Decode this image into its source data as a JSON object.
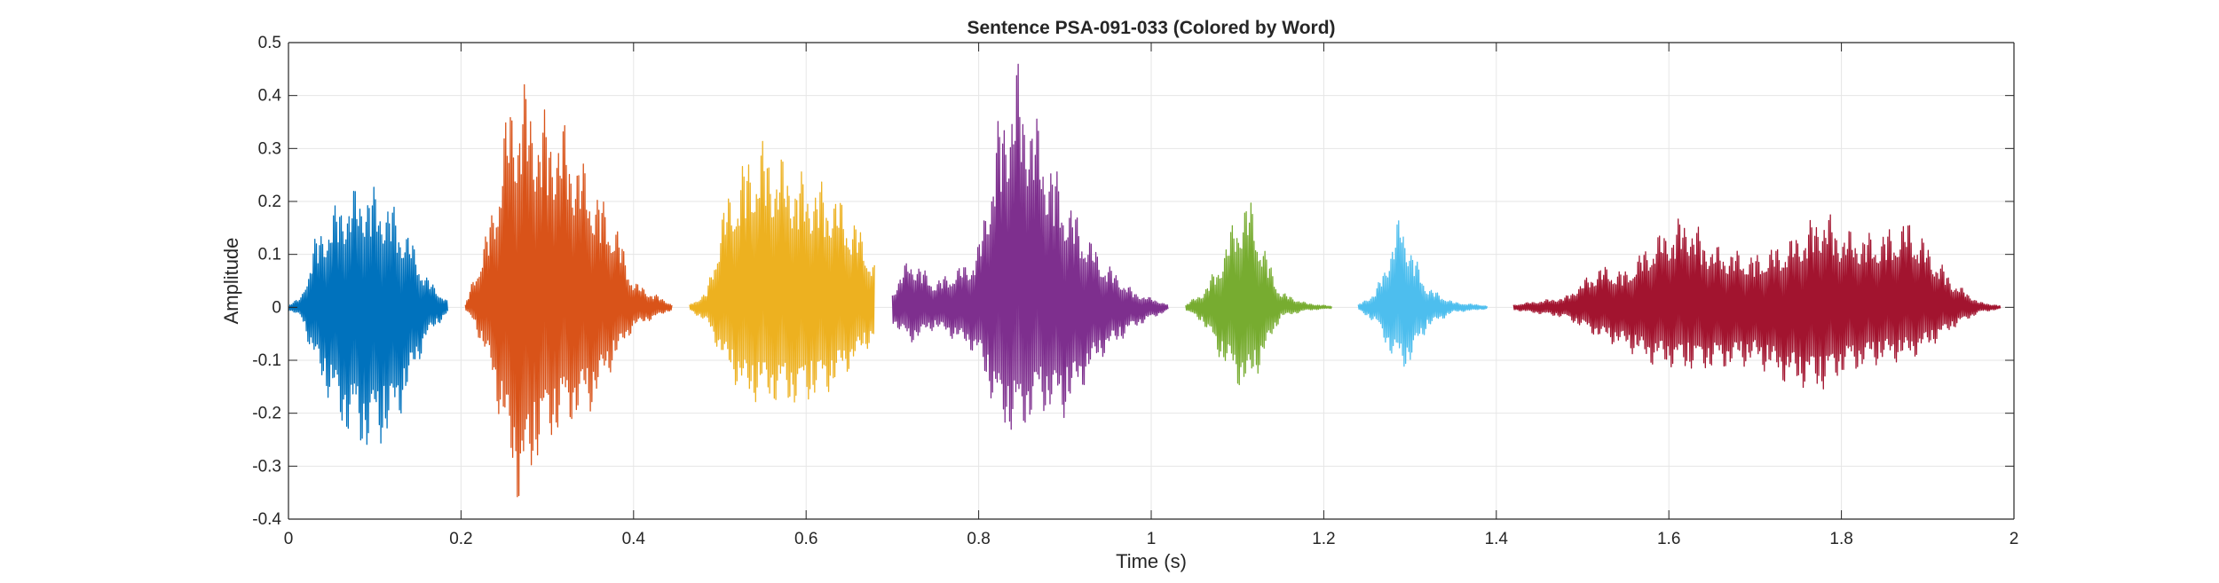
{
  "chart_data": {
    "type": "line",
    "title": "Sentence PSA-091-033 (Colored by Word)",
    "xlabel": "Time (s)",
    "ylabel": "Amplitude",
    "xlim": [
      0,
      2
    ],
    "ylim": [
      -0.4,
      0.5
    ],
    "x_ticks": [
      0,
      0.2,
      0.4,
      0.6,
      0.8,
      1,
      1.2,
      1.4,
      1.6,
      1.8,
      2
    ],
    "x_tick_labels": [
      "0",
      "0.2",
      "0.4",
      "0.6",
      "0.8",
      "1",
      "1.2",
      "1.4",
      "1.6",
      "1.8",
      "2"
    ],
    "y_ticks": [
      -0.4,
      -0.3,
      -0.2,
      -0.1,
      0,
      0.1,
      0.2,
      0.3,
      0.4,
      0.5
    ],
    "y_tick_labels": [
      "-0.4",
      "-0.3",
      "-0.2",
      "-0.1",
      "0",
      "0.1",
      "0.2",
      "0.3",
      "0.4",
      "0.5"
    ],
    "grid": true,
    "legend": "none",
    "series": [
      {
        "color": "#0072BD",
        "envelope": {
          "t": [
            0.0,
            0.015,
            0.03,
            0.06,
            0.09,
            0.12,
            0.14,
            0.16,
            0.185
          ],
          "max": [
            0.005,
            0.02,
            0.13,
            0.21,
            0.24,
            0.2,
            0.14,
            0.06,
            0.01
          ],
          "min": [
            -0.005,
            -0.02,
            -0.11,
            -0.23,
            -0.28,
            -0.25,
            -0.16,
            -0.06,
            -0.01
          ]
        }
      },
      {
        "color": "#D95319",
        "envelope": {
          "t": [
            0.205,
            0.215,
            0.235,
            0.255,
            0.27,
            0.29,
            0.32,
            0.35,
            0.38,
            0.4,
            0.44,
            0.445
          ],
          "max": [
            0.005,
            0.06,
            0.18,
            0.4,
            0.44,
            0.38,
            0.35,
            0.25,
            0.16,
            0.05,
            0.01,
            0.005
          ],
          "min": [
            -0.005,
            -0.03,
            -0.13,
            -0.3,
            -0.4,
            -0.28,
            -0.23,
            -0.2,
            -0.1,
            -0.04,
            -0.008,
            -0.005
          ]
        }
      },
      {
        "color": "#EDB120",
        "envelope": {
          "t": [
            0.465,
            0.485,
            0.505,
            0.53,
            0.55,
            0.59,
            0.63,
            0.66,
            0.68
          ],
          "max": [
            0.005,
            0.03,
            0.2,
            0.29,
            0.32,
            0.26,
            0.23,
            0.16,
            0.08
          ],
          "min": [
            -0.005,
            -0.03,
            -0.11,
            -0.18,
            -0.18,
            -0.19,
            -0.16,
            -0.1,
            -0.06
          ]
        }
      },
      {
        "color": "#7E2F8E",
        "envelope": {
          "t": [
            0.7,
            0.72,
            0.75,
            0.79,
            0.8,
            0.825,
            0.845,
            0.87,
            0.9,
            0.94,
            0.98,
            1.02
          ],
          "max": [
            0.03,
            0.1,
            0.05,
            0.09,
            0.12,
            0.38,
            0.47,
            0.35,
            0.22,
            0.1,
            0.03,
            0.005
          ],
          "min": [
            -0.03,
            -0.07,
            -0.04,
            -0.08,
            -0.1,
            -0.23,
            -0.25,
            -0.2,
            -0.21,
            -0.1,
            -0.04,
            -0.005
          ]
        }
      },
      {
        "color": "#77AC30",
        "envelope": {
          "t": [
            1.04,
            1.06,
            1.08,
            1.1,
            1.115,
            1.13,
            1.15,
            1.18,
            1.21
          ],
          "max": [
            0.005,
            0.03,
            0.09,
            0.19,
            0.21,
            0.12,
            0.03,
            0.008,
            0.002
          ],
          "min": [
            -0.005,
            -0.03,
            -0.1,
            -0.15,
            -0.16,
            -0.1,
            -0.02,
            -0.006,
            -0.002
          ]
        }
      },
      {
        "color": "#4DBEEE",
        "envelope": {
          "t": [
            1.24,
            1.26,
            1.28,
            1.29,
            1.3,
            1.32,
            1.35,
            1.39
          ],
          "max": [
            0.005,
            0.03,
            0.13,
            0.19,
            0.12,
            0.04,
            0.01,
            0.003
          ],
          "min": [
            -0.005,
            -0.03,
            -0.1,
            -0.12,
            -0.11,
            -0.04,
            -0.01,
            -0.003
          ]
        }
      },
      {
        "color": "#A2142F",
        "envelope": {
          "t": [
            1.42,
            1.48,
            1.52,
            1.55,
            1.58,
            1.62,
            1.65,
            1.7,
            1.74,
            1.78,
            1.8,
            1.84,
            1.88,
            1.9,
            1.93,
            1.96,
            1.985
          ],
          "max": [
            0.005,
            0.02,
            0.08,
            0.07,
            0.13,
            0.18,
            0.12,
            0.1,
            0.13,
            0.19,
            0.15,
            0.14,
            0.17,
            0.12,
            0.05,
            0.01,
            0.003
          ],
          "min": [
            -0.005,
            -0.02,
            -0.06,
            -0.08,
            -0.11,
            -0.12,
            -0.12,
            -0.11,
            -0.15,
            -0.16,
            -0.13,
            -0.11,
            -0.1,
            -0.08,
            -0.04,
            -0.01,
            -0.003
          ]
        }
      }
    ]
  }
}
